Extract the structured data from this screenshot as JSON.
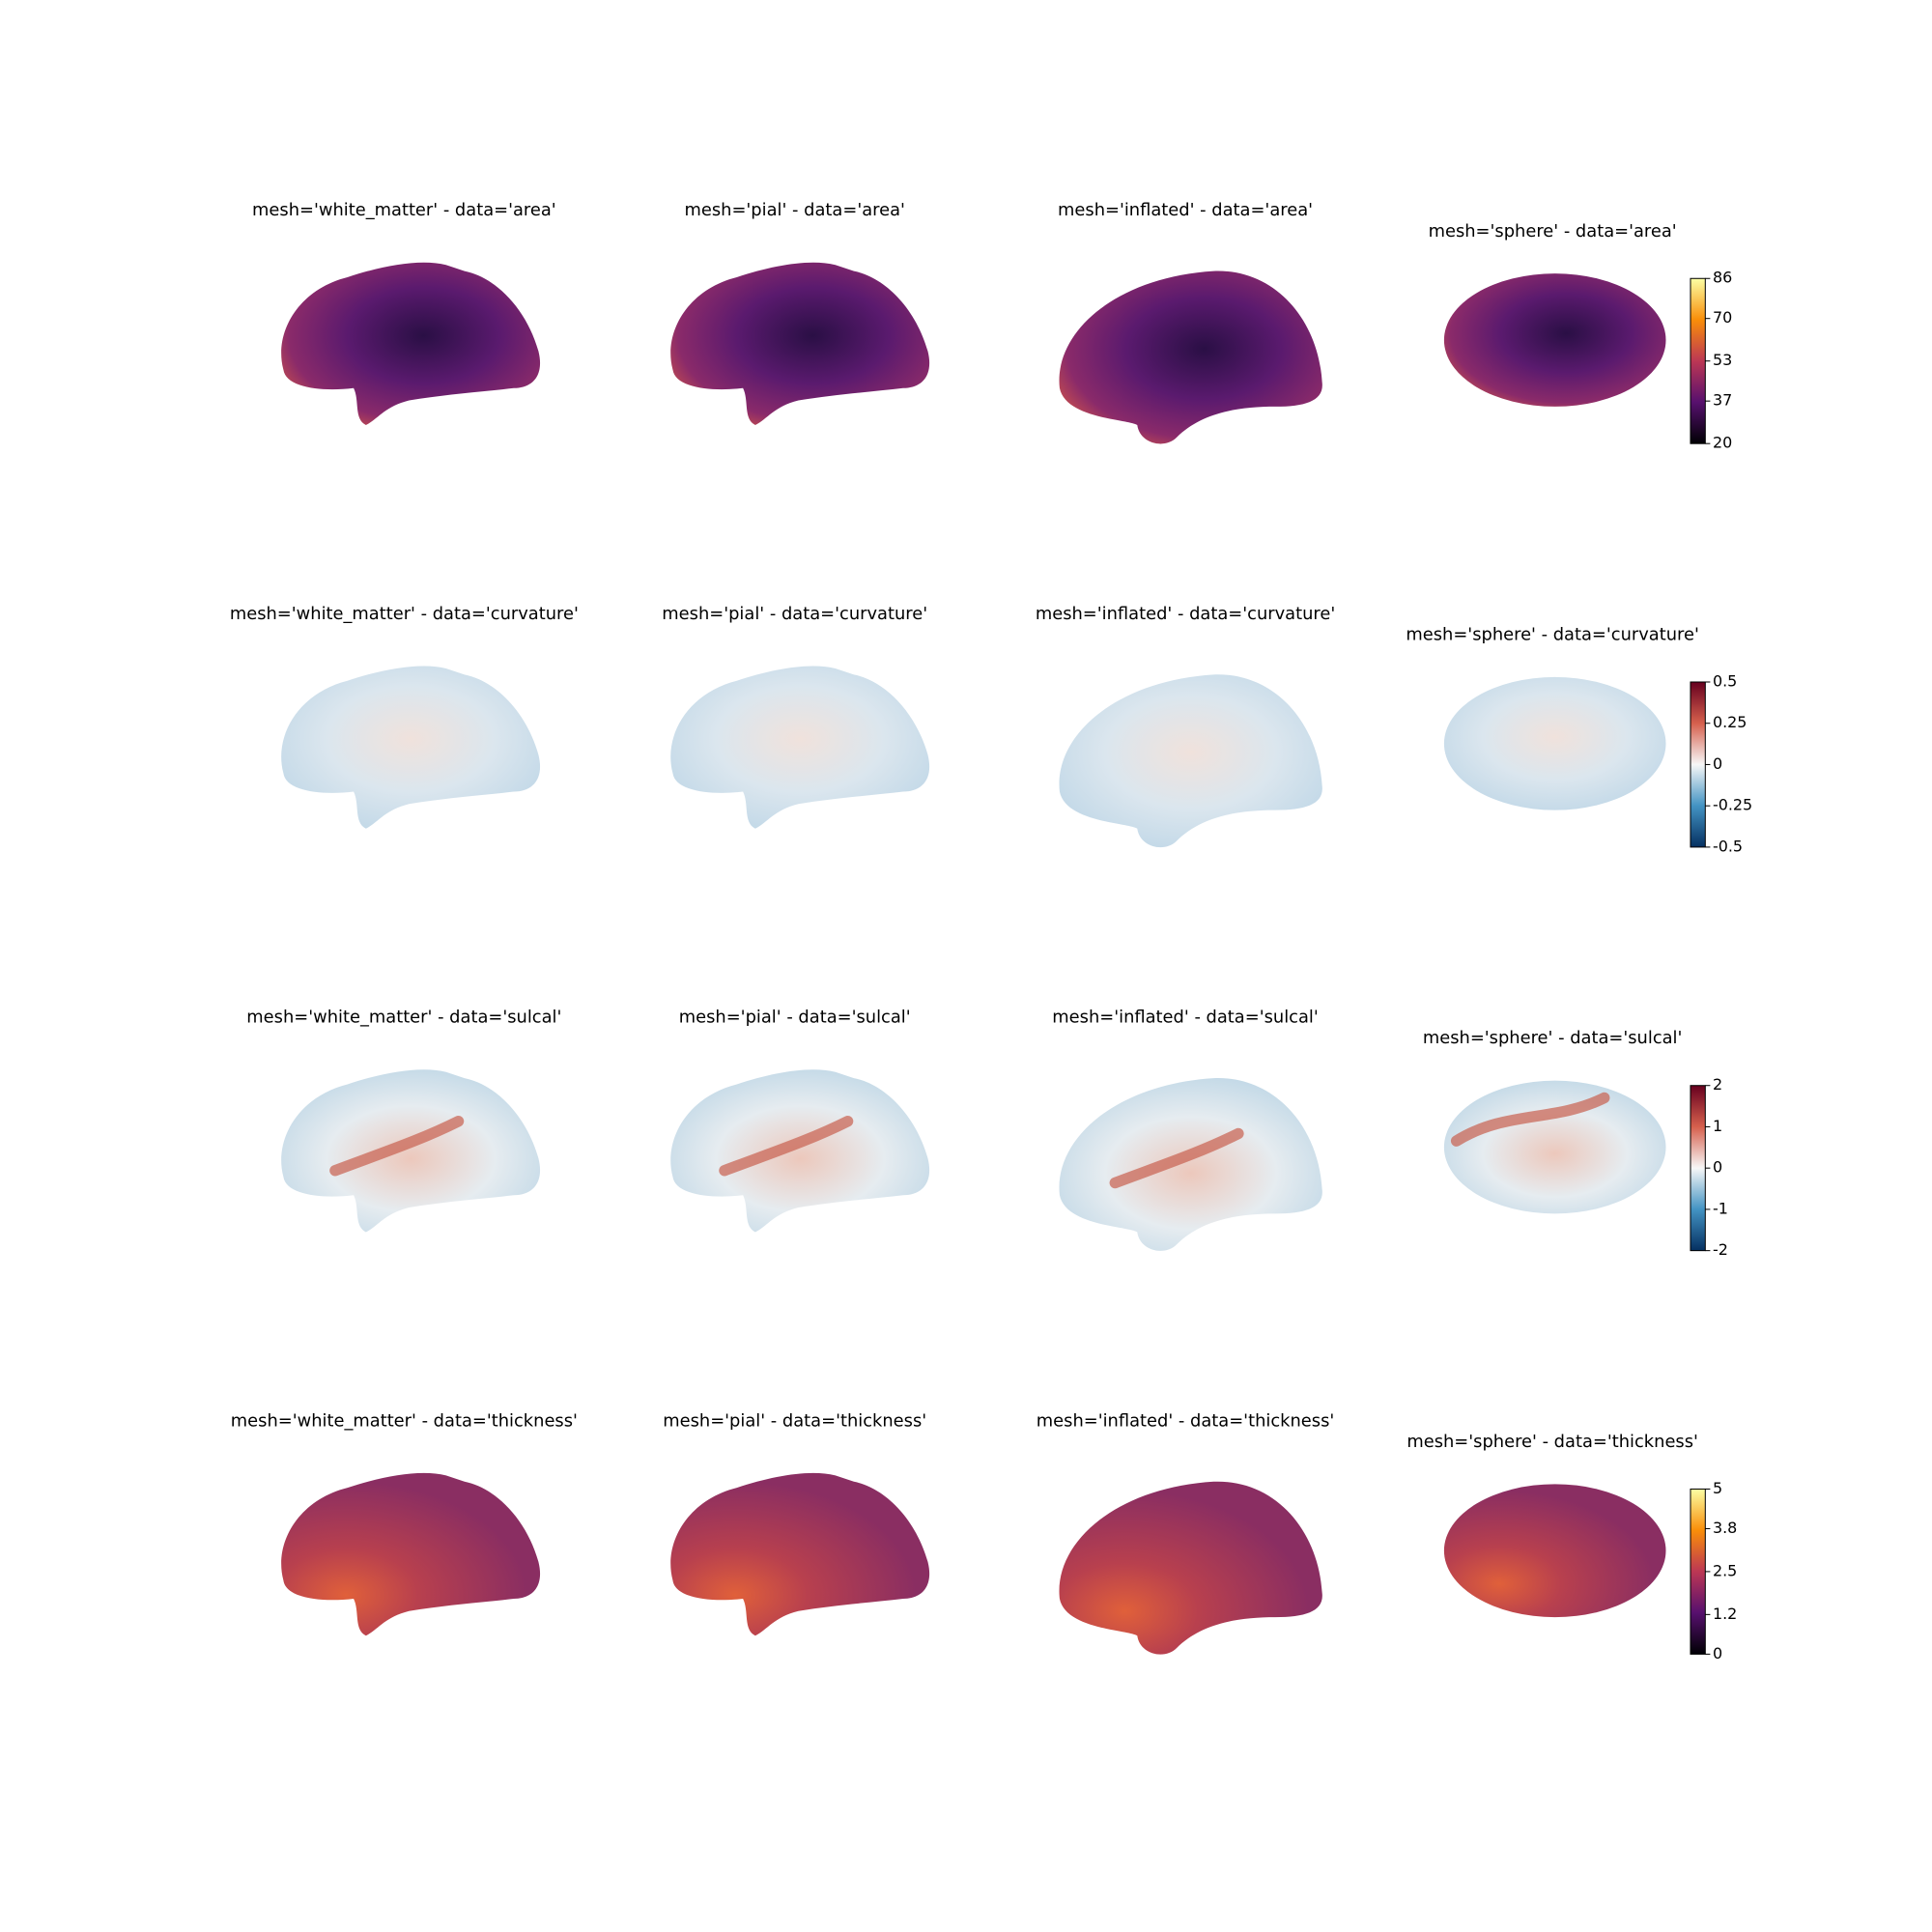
{
  "chart_data": [
    {
      "type": "surface",
      "titles": [
        "mesh='white_matter' - data='area'",
        "mesh='pial' - data='area'",
        "mesh='inflated' - data='area'",
        "mesh='sphere' - data='area'"
      ],
      "clim": [
        20,
        86
      ],
      "cticks": [
        20,
        37,
        53,
        70,
        86
      ],
      "colormap": [
        "#000004",
        "#57106e",
        "#bc3754",
        "#f98e09",
        "#fcffa4"
      ]
    },
    {
      "type": "surface",
      "titles": [
        "mesh='white_matter' - data='curvature'",
        "mesh='pial' - data='curvature'",
        "mesh='inflated' - data='curvature'",
        "mesh='sphere' - data='curvature'"
      ],
      "clim": [
        -0.5,
        0.5
      ],
      "cticks": [
        -0.5,
        -0.25,
        0,
        0.25,
        0.5
      ],
      "colormap": [
        "#053061",
        "#4393c3",
        "#f7f7f7",
        "#d6604d",
        "#67001f"
      ]
    },
    {
      "type": "surface",
      "titles": [
        "mesh='white_matter' - data='sulcal'",
        "mesh='pial' - data='sulcal'",
        "mesh='inflated' - data='sulcal'",
        "mesh='sphere' - data='sulcal'"
      ],
      "clim": [
        -2,
        2
      ],
      "cticks": [
        -2,
        -1,
        0,
        1,
        2
      ],
      "colormap": [
        "#053061",
        "#4393c3",
        "#f7f7f7",
        "#d6604d",
        "#67001f"
      ]
    },
    {
      "type": "surface",
      "titles": [
        "mesh='white_matter' - data='thickness'",
        "mesh='pial' - data='thickness'",
        "mesh='inflated' - data='thickness'",
        "mesh='sphere' - data='thickness'"
      ],
      "clim": [
        0,
        5
      ],
      "cticks": [
        0,
        1.2,
        2.5,
        3.8,
        5
      ],
      "colormap": [
        "#000004",
        "#57106e",
        "#bc3754",
        "#f98e09",
        "#fcffa4"
      ]
    }
  ]
}
